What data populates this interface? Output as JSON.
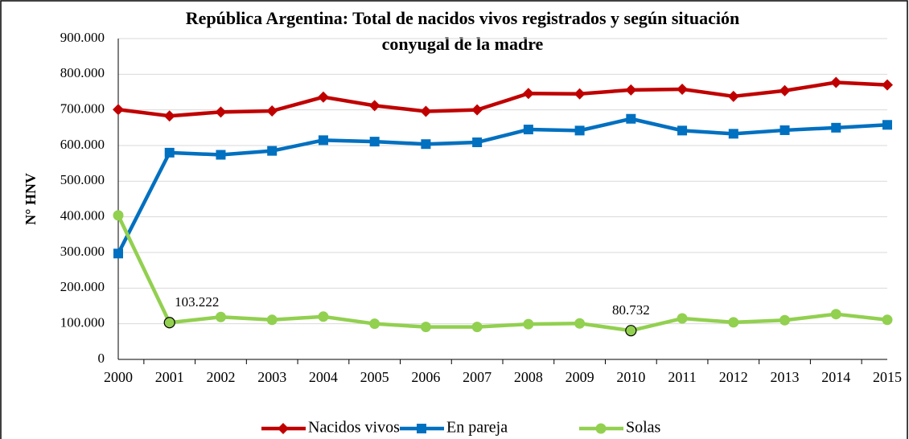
{
  "chart_data": {
    "type": "line",
    "title": [
      "República Argentina: Total de nacidos vivos registrados y según situación",
      "conyugal de la madre"
    ],
    "y_label": "N° HNV",
    "categories": [
      "2000",
      "2001",
      "2002",
      "2003",
      "2004",
      "2005",
      "2006",
      "2007",
      "2008",
      "2009",
      "2010",
      "2011",
      "2012",
      "2013",
      "2014",
      "2015"
    ],
    "series": [
      {
        "name": "Nacidos vivos",
        "color": "#c00000",
        "marker": "diamond",
        "values": [
          701000,
          683000,
          694000,
          697000,
          736000,
          712000,
          696000,
          700000,
          746000,
          745000,
          756000,
          758000,
          738000,
          754000,
          777000,
          770000
        ]
      },
      {
        "name": "En pareja",
        "color": "#0070c0",
        "marker": "square",
        "values": [
          297000,
          580000,
          574000,
          585000,
          615000,
          611000,
          604000,
          609000,
          645000,
          642000,
          675000,
          642000,
          633000,
          643000,
          650000,
          658000
        ]
      },
      {
        "name": "Solas",
        "color": "#92d050",
        "marker": "circle",
        "values": [
          404000,
          103222,
          119000,
          111000,
          120000,
          100000,
          91000,
          91000,
          99000,
          101000,
          80732,
          115000,
          104000,
          110000,
          127000,
          111000
        ],
        "value_labels": [
          null,
          "103.222",
          null,
          null,
          null,
          null,
          null,
          null,
          null,
          null,
          "80.732",
          null,
          null,
          null,
          null,
          null
        ]
      }
    ],
    "ylim": [
      0,
      900000
    ],
    "yticks": [
      0,
      {
        "value": 100000,
        "label": "100.000"
      },
      {
        "value": 200000,
        "label": "200.000"
      },
      {
        "value": 300000,
        "label": "300.000"
      },
      {
        "value": 400000,
        "label": "400.000"
      },
      {
        "value": 500000,
        "label": "500.000"
      },
      {
        "value": 600000,
        "label": "600.000"
      },
      {
        "value": 700000,
        "label": "700.000"
      },
      {
        "value": 800000,
        "label": "800.000"
      },
      {
        "value": 900000,
        "label": "900.000"
      }
    ],
    "grid": true,
    "legend": "bottom"
  }
}
